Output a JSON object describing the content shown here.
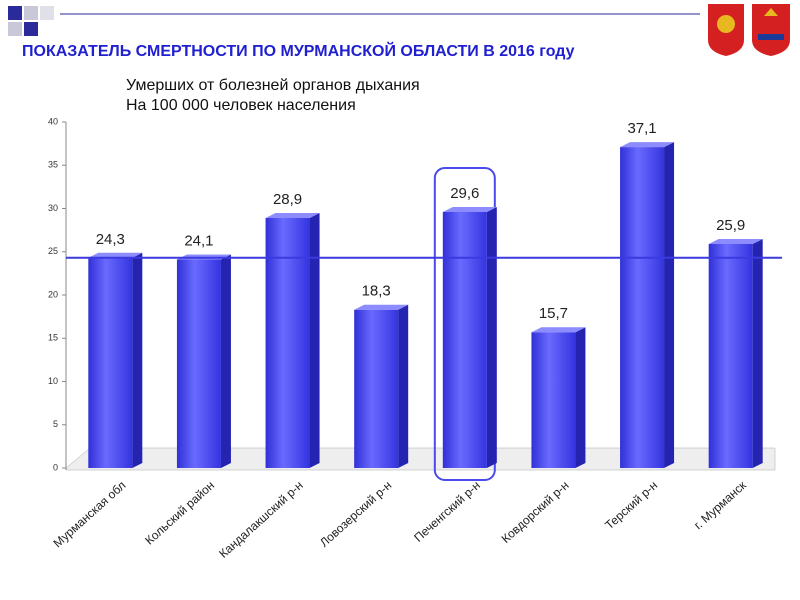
{
  "chart_data": {
    "type": "bar3d",
    "title": "ПОКАЗАТЕЛЬ СМЕРТНОСТИ ПО МУРМАНСКОЙ ОБЛАСТИ В 2016 году",
    "subtitle": [
      "Умерших от болезней органов дыхания",
      "На 100 000 человек населения"
    ],
    "categories": [
      "Мурманская обл",
      "Кольский район",
      "Кандалакшский р-н",
      "Ловозерский р-н",
      "Печенгский р-н",
      "Ковдорский р-н",
      "Терский р-н",
      "г. Мурманск"
    ],
    "values": [
      24.3,
      24.1,
      28.9,
      18.3,
      29.6,
      15.7,
      37.1,
      25.9
    ],
    "value_labels": [
      "24,3",
      "24,1",
      "28,9",
      "18,3",
      "29,6",
      "15,7",
      "37,1",
      "25,9"
    ],
    "color": "#4a4aef",
    "ylim": [
      0,
      40
    ],
    "yticks": [
      0,
      5,
      10,
      15,
      20,
      25,
      30,
      35,
      40
    ]
  }
}
